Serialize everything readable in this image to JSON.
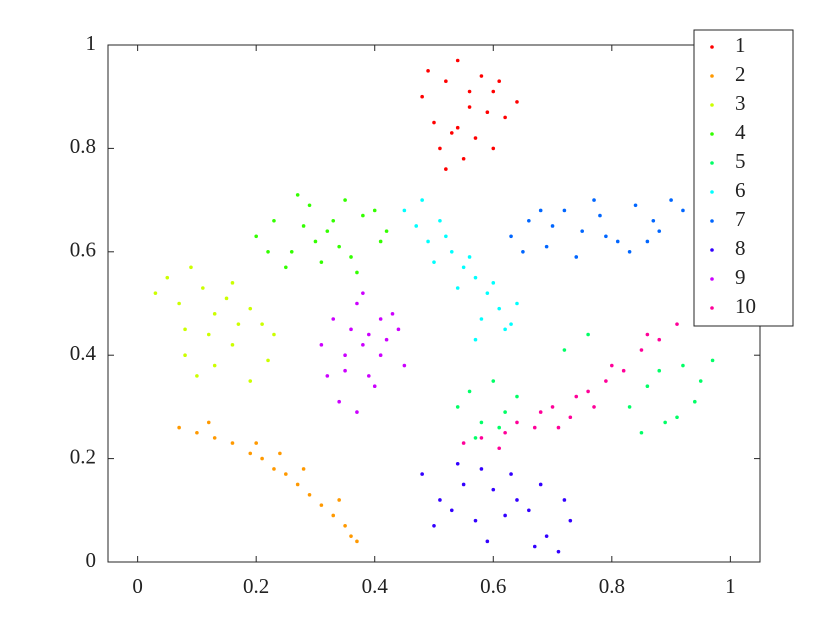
{
  "chart_data": {
    "type": "scatter",
    "xlim": [
      -0.05,
      1.05
    ],
    "ylim": [
      0,
      1
    ],
    "xticks": [
      0,
      0.2,
      0.4,
      0.6,
      0.8,
      1
    ],
    "yticks": [
      0,
      0.2,
      0.4,
      0.6,
      0.8,
      1
    ],
    "grid": false,
    "legend": "northeast",
    "series": [
      {
        "name": "1",
        "color": "#ff0000",
        "x": [
          0.48,
          0.5,
          0.52,
          0.54,
          0.56,
          0.58,
          0.6,
          0.62,
          0.64,
          0.51,
          0.53,
          0.55,
          0.57,
          0.59,
          0.61,
          0.49,
          0.52,
          0.56,
          0.6,
          0.54
        ],
        "y": [
          0.9,
          0.85,
          0.93,
          0.97,
          0.88,
          0.94,
          0.91,
          0.86,
          0.89,
          0.8,
          0.83,
          0.78,
          0.82,
          0.87,
          0.93,
          0.95,
          0.76,
          0.91,
          0.8,
          0.84
        ]
      },
      {
        "name": "2",
        "color": "#ff9900",
        "x": [
          0.07,
          0.1,
          0.13,
          0.16,
          0.19,
          0.21,
          0.23,
          0.25,
          0.27,
          0.29,
          0.31,
          0.33,
          0.35,
          0.36,
          0.37,
          0.12,
          0.2,
          0.28,
          0.34,
          0.24
        ],
        "y": [
          0.26,
          0.25,
          0.24,
          0.23,
          0.21,
          0.2,
          0.18,
          0.17,
          0.15,
          0.13,
          0.11,
          0.09,
          0.07,
          0.05,
          0.04,
          0.27,
          0.23,
          0.18,
          0.12,
          0.21
        ]
      },
      {
        "name": "3",
        "color": "#ccff00",
        "x": [
          0.03,
          0.05,
          0.07,
          0.09,
          0.11,
          0.13,
          0.15,
          0.17,
          0.19,
          0.08,
          0.12,
          0.16,
          0.21,
          0.23,
          0.08,
          0.1,
          0.13,
          0.16,
          0.19,
          0.22
        ],
        "y": [
          0.52,
          0.55,
          0.5,
          0.57,
          0.53,
          0.48,
          0.51,
          0.46,
          0.49,
          0.45,
          0.44,
          0.54,
          0.46,
          0.44,
          0.4,
          0.36,
          0.38,
          0.42,
          0.35,
          0.39
        ]
      },
      {
        "name": "4",
        "color": "#33ff00",
        "x": [
          0.2,
          0.23,
          0.26,
          0.29,
          0.32,
          0.35,
          0.38,
          0.41,
          0.22,
          0.25,
          0.28,
          0.31,
          0.34,
          0.37,
          0.4,
          0.27,
          0.3,
          0.33,
          0.36,
          0.42
        ],
        "y": [
          0.63,
          0.66,
          0.6,
          0.69,
          0.64,
          0.7,
          0.67,
          0.62,
          0.6,
          0.57,
          0.65,
          0.58,
          0.61,
          0.56,
          0.68,
          0.71,
          0.62,
          0.66,
          0.59,
          0.64
        ]
      },
      {
        "name": "5",
        "color": "#00ff66",
        "x": [
          0.54,
          0.56,
          0.58,
          0.6,
          0.62,
          0.64,
          0.57,
          0.61,
          0.83,
          0.86,
          0.89,
          0.92,
          0.95,
          0.97,
          0.85,
          0.88,
          0.91,
          0.94,
          0.72,
          0.76
        ],
        "y": [
          0.3,
          0.33,
          0.27,
          0.35,
          0.29,
          0.32,
          0.24,
          0.26,
          0.3,
          0.34,
          0.27,
          0.38,
          0.35,
          0.39,
          0.25,
          0.37,
          0.28,
          0.31,
          0.41,
          0.44
        ]
      },
      {
        "name": "6",
        "color": "#00ffff",
        "x": [
          0.45,
          0.47,
          0.49,
          0.51,
          0.53,
          0.55,
          0.57,
          0.59,
          0.61,
          0.63,
          0.48,
          0.52,
          0.56,
          0.6,
          0.64,
          0.5,
          0.54,
          0.58,
          0.62,
          0.57
        ],
        "y": [
          0.68,
          0.65,
          0.62,
          0.66,
          0.6,
          0.57,
          0.55,
          0.52,
          0.49,
          0.46,
          0.7,
          0.63,
          0.59,
          0.54,
          0.5,
          0.58,
          0.53,
          0.47,
          0.45,
          0.43
        ]
      },
      {
        "name": "7",
        "color": "#0066ff",
        "x": [
          0.63,
          0.66,
          0.69,
          0.72,
          0.75,
          0.78,
          0.81,
          0.84,
          0.87,
          0.9,
          0.65,
          0.7,
          0.74,
          0.79,
          0.83,
          0.88,
          0.68,
          0.77,
          0.86,
          0.92
        ],
        "y": [
          0.63,
          0.66,
          0.61,
          0.68,
          0.64,
          0.67,
          0.62,
          0.69,
          0.66,
          0.7,
          0.6,
          0.65,
          0.59,
          0.63,
          0.6,
          0.64,
          0.68,
          0.7,
          0.62,
          0.68
        ]
      },
      {
        "name": "8",
        "color": "#3300ff",
        "x": [
          0.48,
          0.51,
          0.54,
          0.57,
          0.6,
          0.63,
          0.66,
          0.69,
          0.72,
          0.5,
          0.55,
          0.59,
          0.64,
          0.68,
          0.71,
          0.53,
          0.58,
          0.62,
          0.67,
          0.73
        ],
        "y": [
          0.17,
          0.12,
          0.19,
          0.08,
          0.14,
          0.17,
          0.1,
          0.05,
          0.12,
          0.07,
          0.15,
          0.04,
          0.12,
          0.15,
          0.02,
          0.1,
          0.18,
          0.09,
          0.03,
          0.08
        ]
      },
      {
        "name": "9",
        "color": "#cc00ff",
        "x": [
          0.31,
          0.33,
          0.35,
          0.37,
          0.39,
          0.41,
          0.43,
          0.45,
          0.34,
          0.36,
          0.38,
          0.4,
          0.42,
          0.32,
          0.37,
          0.41,
          0.35,
          0.39,
          0.44,
          0.38
        ],
        "y": [
          0.42,
          0.47,
          0.37,
          0.5,
          0.44,
          0.4,
          0.48,
          0.38,
          0.31,
          0.45,
          0.52,
          0.34,
          0.43,
          0.36,
          0.29,
          0.47,
          0.4,
          0.36,
          0.45,
          0.42
        ]
      },
      {
        "name": "10",
        "color": "#ff0099",
        "x": [
          0.55,
          0.58,
          0.61,
          0.64,
          0.67,
          0.7,
          0.73,
          0.76,
          0.79,
          0.82,
          0.85,
          0.88,
          0.91,
          0.62,
          0.68,
          0.74,
          0.8,
          0.86,
          0.71,
          0.77
        ],
        "y": [
          0.23,
          0.24,
          0.22,
          0.27,
          0.26,
          0.3,
          0.28,
          0.33,
          0.35,
          0.37,
          0.41,
          0.43,
          0.46,
          0.25,
          0.29,
          0.32,
          0.38,
          0.44,
          0.26,
          0.3
        ]
      }
    ]
  }
}
